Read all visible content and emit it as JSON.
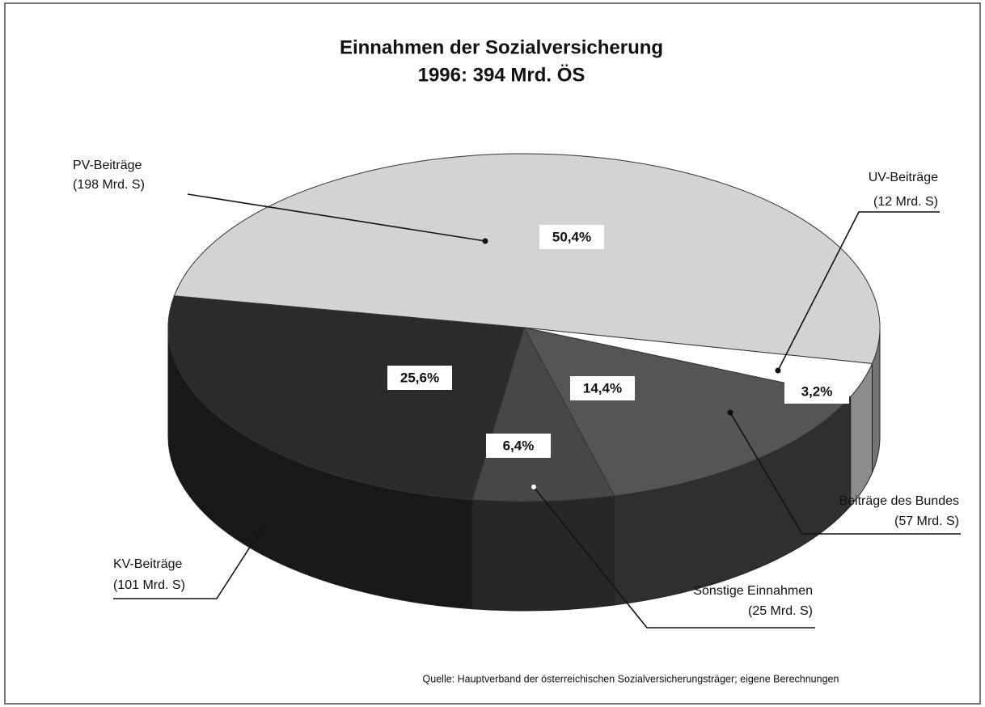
{
  "chart_data": {
    "type": "pie",
    "title": "Einnahmen der Sozialversicherung",
    "subtitle": "1996: 394 Mrd. ÖS",
    "categories": [
      "PV-Beiträge",
      "UV-Beiträge",
      "Beiträge des Bundes",
      "Sonstige Einnahmen",
      "KV-Beiträge"
    ],
    "category_notes": [
      "(198 Mrd. S)",
      "(12 Mrd. S)",
      "(57 Mrd. S)",
      "(25 Mrd. S)",
      "(101 Mrd. S)"
    ],
    "values": [
      50.4,
      3.2,
      14.4,
      6.4,
      25.6
    ],
    "value_labels": [
      "50,4%",
      "3,2%",
      "14,4%",
      "6,4%",
      "25,6%"
    ],
    "colors": [
      "#d3d3d3",
      "#ffffff",
      "#555555",
      "#474747",
      "#2b2b2b"
    ],
    "source": "Quelle: Hauptverband der österreichischen Sozialversicherungsträger; eigene Berechnungen"
  }
}
